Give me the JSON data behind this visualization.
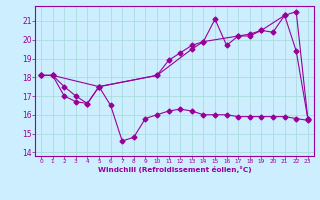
{
  "xlabel": "Windchill (Refroidissement éolien,°C)",
  "bg_color": "#cceeff",
  "line_color": "#990099",
  "grid_color": "#aadddd",
  "xlim": [
    -0.5,
    23.5
  ],
  "ylim": [
    13.8,
    21.8
  ],
  "yticks": [
    14,
    15,
    16,
    17,
    18,
    19,
    20,
    21
  ],
  "xticks": [
    0,
    1,
    2,
    3,
    4,
    5,
    6,
    7,
    8,
    9,
    10,
    11,
    12,
    13,
    14,
    15,
    16,
    17,
    18,
    19,
    20,
    21,
    22,
    23
  ],
  "series1_x": [
    0,
    1,
    2,
    3,
    4,
    5,
    6,
    7,
    8,
    9,
    10,
    11,
    12,
    13,
    14,
    15,
    16,
    17,
    18,
    19,
    20,
    21,
    22,
    23
  ],
  "series1_y": [
    18.1,
    18.1,
    17.0,
    16.7,
    16.6,
    17.5,
    16.5,
    14.6,
    14.8,
    15.8,
    16.0,
    16.2,
    16.3,
    16.2,
    16.0,
    16.0,
    16.0,
    15.9,
    15.9,
    15.9,
    15.9,
    15.9,
    15.8,
    15.7
  ],
  "series2_x": [
    0,
    1,
    2,
    3,
    4,
    5,
    10,
    11,
    12,
    13,
    14,
    15,
    16,
    17,
    18,
    19,
    20,
    21,
    22,
    23
  ],
  "series2_y": [
    18.1,
    18.1,
    17.5,
    17.0,
    16.6,
    17.5,
    18.1,
    18.9,
    19.3,
    19.7,
    19.9,
    21.1,
    19.7,
    20.2,
    20.2,
    20.5,
    20.4,
    21.3,
    19.4,
    15.8
  ],
  "series3_x": [
    0,
    1,
    5,
    10,
    13,
    14,
    17,
    18,
    19,
    21,
    22,
    23
  ],
  "series3_y": [
    18.1,
    18.1,
    17.5,
    18.1,
    19.5,
    19.9,
    20.2,
    20.3,
    20.5,
    21.3,
    21.5,
    15.8
  ]
}
